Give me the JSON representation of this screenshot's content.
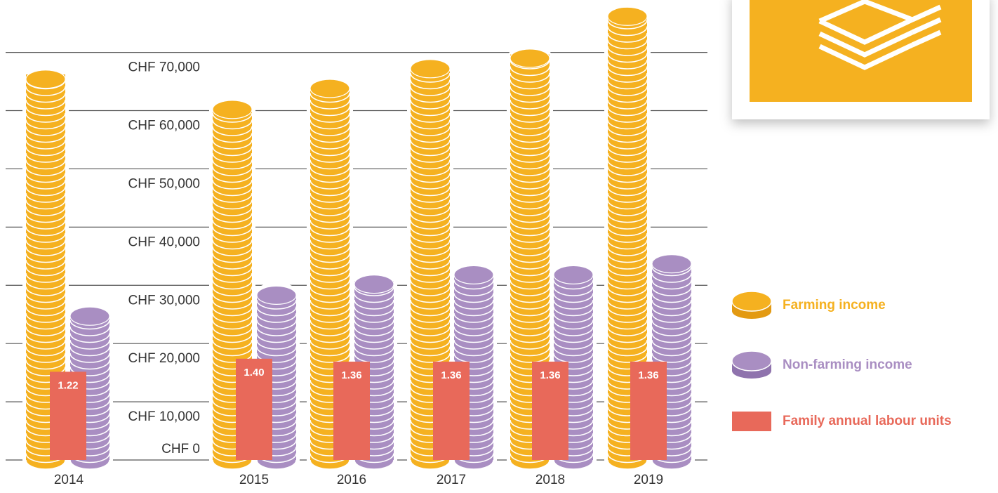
{
  "chart_data": {
    "type": "coin-bar",
    "categories": [
      "2014",
      "2015",
      "2016",
      "2017",
      "2018",
      "2019"
    ],
    "series": [
      {
        "name": "Farming income",
        "color": "#f5b120",
        "values": [
          65400,
          60200,
          63800,
          67200,
          69000,
          76200
        ]
      },
      {
        "name": "Non-farming income",
        "color": "#a98ec2",
        "values": [
          24700,
          28300,
          30200,
          31800,
          31800,
          33700
        ]
      },
      {
        "name": "Family annual labour units",
        "color": "#e8695a",
        "values": [
          1.22,
          1.4,
          1.36,
          1.36,
          1.36,
          1.36
        ],
        "value_labels": [
          "1.22",
          "1.40",
          "1.36",
          "1.36",
          "1.36",
          "1.36"
        ]
      }
    ],
    "ylim": [
      0,
      79000
    ],
    "yticks": [
      {
        "value": 0,
        "label": "CHF 0"
      },
      {
        "value": 10000,
        "label": "CHF 10,000"
      },
      {
        "value": 20000,
        "label": "CHF 20,000"
      },
      {
        "value": 30000,
        "label": "CHF 30,000"
      },
      {
        "value": 40000,
        "label": "CHF 40,000"
      },
      {
        "value": 50000,
        "label": "CHF 50,000"
      },
      {
        "value": 60000,
        "label": "CHF 60,000"
      },
      {
        "value": 70000,
        "label": "CHF 70,000"
      }
    ],
    "grid": true,
    "legend": "right"
  }
}
